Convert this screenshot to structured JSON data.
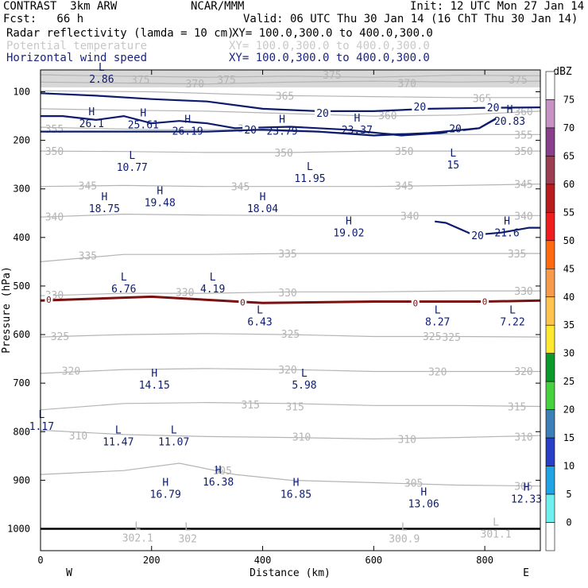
{
  "header": {
    "title": "CONTRAST  3km ARW",
    "center": "NCAR/MMM",
    "init": "Init: 12 UTC Mon 27 Jan 14",
    "fcst": "Fcst:   66 h",
    "valid": "Valid: 06 UTC Thu 30 Jan 14 (16 ChT Thu 30 Jan 14)",
    "fields": [
      {
        "name": "Radar reflectivity (lamda = 10 cm)",
        "xy": "XY= 100.0,300.0 to 400.0,300.0"
      },
      {
        "name": "Potential temperature",
        "xy": "XY= 100.0,300.0 to 400.0,300.0"
      },
      {
        "name": "Horizontal wind speed",
        "xy": "XY= 100.0,300.0 to 400.0,300.0"
      }
    ]
  },
  "chart_data": {
    "type": "cross-section",
    "xlabel": "Distance (km)",
    "ylabel": "Pressure (hPa)",
    "xlim": [
      0,
      900
    ],
    "ylim": [
      1045,
      55
    ],
    "x_ticks": [
      0,
      200,
      400,
      600,
      800
    ],
    "y_ticks": [
      100,
      200,
      300,
      400,
      500,
      600,
      700,
      800,
      900,
      1000
    ],
    "west_label": "W",
    "east_label": "E",
    "theta_contours": [
      {
        "label": "375",
        "points": [
          [
            0,
            65
          ],
          [
            150,
            68
          ],
          [
            300,
            70
          ],
          [
            450,
            68
          ],
          [
            600,
            70
          ],
          [
            750,
            66
          ],
          [
            900,
            67
          ]
        ],
        "labels_at": [
          [
            180,
            75
          ],
          [
            335,
            75
          ],
          [
            525,
            65
          ],
          [
            860,
            75
          ]
        ]
      },
      {
        "label": "370",
        "points": [
          [
            0,
            80
          ],
          [
            150,
            82
          ],
          [
            300,
            84
          ],
          [
            450,
            80
          ],
          [
            600,
            78
          ],
          [
            750,
            80
          ],
          [
            900,
            78
          ]
        ],
        "labels_at": [
          [
            278,
            83
          ],
          [
            660,
            82
          ]
        ]
      },
      {
        "label": "365",
        "points": [
          [
            0,
            98
          ],
          [
            200,
            100
          ],
          [
            350,
            105
          ],
          [
            450,
            108
          ],
          [
            600,
            110
          ],
          [
            750,
            112
          ],
          [
            900,
            112
          ]
        ],
        "labels_at": [
          [
            440,
            108
          ],
          [
            795,
            113
          ]
        ]
      },
      {
        "label": "360",
        "points": [
          [
            0,
            135
          ],
          [
            150,
            138
          ],
          [
            300,
            140
          ],
          [
            450,
            145
          ],
          [
            600,
            150
          ],
          [
            750,
            148
          ],
          [
            900,
            140
          ]
        ],
        "labels_at": [
          [
            625,
            148
          ],
          [
            870,
            140
          ]
        ]
      },
      {
        "label": "355",
        "points": [
          [
            0,
            173
          ],
          [
            200,
            178
          ],
          [
            350,
            178
          ],
          [
            450,
            182
          ],
          [
            600,
            185
          ],
          [
            750,
            188
          ],
          [
            900,
            188
          ]
        ],
        "labels_at": [
          [
            25,
            176
          ],
          [
            372,
            175
          ],
          [
            870,
            188
          ]
        ]
      },
      {
        "label": "350",
        "points": [
          [
            0,
            222
          ],
          [
            150,
            223
          ],
          [
            300,
            225
          ],
          [
            450,
            225
          ],
          [
            600,
            222
          ],
          [
            750,
            222
          ],
          [
            900,
            222
          ]
        ],
        "labels_at": [
          [
            25,
            222
          ],
          [
            438,
            225
          ],
          [
            655,
            222
          ],
          [
            870,
            222
          ]
        ]
      },
      {
        "label": "345",
        "points": [
          [
            0,
            295
          ],
          [
            150,
            293
          ],
          [
            300,
            295
          ],
          [
            450,
            295
          ],
          [
            600,
            295
          ],
          [
            750,
            293
          ],
          [
            900,
            290
          ]
        ],
        "labels_at": [
          [
            85,
            293
          ],
          [
            360,
            295
          ],
          [
            655,
            293
          ],
          [
            870,
            290
          ]
        ]
      },
      {
        "label": "340",
        "points": [
          [
            0,
            358
          ],
          [
            150,
            352
          ],
          [
            300,
            354
          ],
          [
            450,
            355
          ],
          [
            600,
            355
          ],
          [
            750,
            355
          ],
          [
            900,
            355
          ]
        ],
        "labels_at": [
          [
            25,
            357
          ],
          [
            665,
            355
          ],
          [
            870,
            355
          ]
        ]
      },
      {
        "label": "335",
        "points": [
          [
            0,
            450
          ],
          [
            150,
            435
          ],
          [
            300,
            435
          ],
          [
            450,
            433
          ],
          [
            600,
            433
          ],
          [
            750,
            433
          ],
          [
            900,
            433
          ]
        ],
        "labels_at": [
          [
            85,
            437
          ],
          [
            445,
            433
          ],
          [
            858,
            433
          ]
        ]
      },
      {
        "label": "330",
        "points": [
          [
            0,
            520
          ],
          [
            150,
            515
          ],
          [
            300,
            515
          ],
          [
            450,
            512
          ],
          [
            600,
            512
          ],
          [
            750,
            510
          ],
          [
            900,
            510
          ]
        ],
        "labels_at": [
          [
            25,
            518
          ],
          [
            260,
            512
          ],
          [
            445,
            513
          ],
          [
            870,
            510
          ]
        ]
      },
      {
        "label": "325",
        "points": [
          [
            0,
            605
          ],
          [
            150,
            600
          ],
          [
            300,
            598
          ],
          [
            450,
            600
          ],
          [
            600,
            604
          ],
          [
            750,
            604
          ],
          [
            900,
            605
          ]
        ],
        "labels_at": [
          [
            35,
            603
          ],
          [
            450,
            598
          ],
          [
            705,
            603
          ],
          [
            740,
            605
          ]
        ]
      },
      {
        "label": "320",
        "points": [
          [
            0,
            680
          ],
          [
            150,
            672
          ],
          [
            300,
            670
          ],
          [
            450,
            672
          ],
          [
            600,
            676
          ],
          [
            750,
            676
          ],
          [
            900,
            676
          ]
        ],
        "labels_at": [
          [
            55,
            674
          ],
          [
            445,
            672
          ],
          [
            715,
            676
          ],
          [
            870,
            675
          ]
        ]
      },
      {
        "label": "315",
        "points": [
          [
            0,
            755
          ],
          [
            150,
            742
          ],
          [
            300,
            740
          ],
          [
            450,
            742
          ],
          [
            600,
            746
          ],
          [
            750,
            746
          ],
          [
            900,
            748
          ]
        ],
        "labels_at": [
          [
            378,
            744
          ],
          [
            458,
            748
          ],
          [
            858,
            748
          ]
        ]
      },
      {
        "label": "310",
        "points": [
          [
            0,
            797
          ],
          [
            150,
            806
          ],
          [
            300,
            810
          ],
          [
            450,
            812
          ],
          [
            600,
            815
          ],
          [
            750,
            812
          ],
          [
            900,
            808
          ]
        ],
        "labels_at": [
          [
            68,
            808
          ],
          [
            470,
            810
          ],
          [
            660,
            815
          ],
          [
            870,
            810
          ]
        ]
      },
      {
        "label": "305",
        "points": [
          [
            0,
            888
          ],
          [
            150,
            880
          ],
          [
            250,
            865
          ],
          [
            350,
            888
          ],
          [
            450,
            900
          ],
          [
            600,
            905
          ],
          [
            750,
            910
          ],
          [
            900,
            912
          ]
        ],
        "labels_at": [
          [
            328,
            880
          ],
          [
            672,
            905
          ],
          [
            870,
            912
          ]
        ]
      }
    ],
    "wind_20": [
      {
        "label": "20",
        "points": [
          [
            0,
            103
          ],
          [
            100,
            108
          ],
          [
            200,
            115
          ],
          [
            300,
            120
          ],
          [
            400,
            135
          ],
          [
            500,
            140
          ],
          [
            600,
            140
          ],
          [
            700,
            135
          ],
          [
            800,
            133
          ],
          [
            900,
            132
          ]
        ],
        "labels_at": [
          [
            508,
            143
          ],
          [
            683,
            130
          ],
          [
            815,
            132
          ]
        ]
      },
      {
        "label": "20",
        "points": [
          [
            0,
            150
          ],
          [
            40,
            150
          ],
          [
            100,
            158
          ],
          [
            150,
            150
          ],
          [
            200,
            165
          ],
          [
            250,
            160
          ],
          [
            300,
            165
          ],
          [
            350,
            175
          ],
          [
            450,
            172
          ],
          [
            550,
            178
          ],
          [
            650,
            190
          ],
          [
            720,
            185
          ],
          [
            790,
            175
          ],
          [
            820,
            155
          ]
        ],
        "labels_at": [
          [
            378,
            178
          ],
          [
            747,
            175
          ]
        ]
      },
      {
        "label": "20",
        "points": [
          [
            0,
            182
          ],
          [
            200,
            182
          ],
          [
            300,
            182
          ],
          [
            400,
            178
          ],
          [
            500,
            182
          ],
          [
            600,
            190
          ],
          [
            700,
            185
          ],
          [
            790,
            175
          ],
          [
            820,
            156
          ]
        ],
        "labels_at": []
      },
      {
        "label": "20",
        "points": [
          [
            710,
            367
          ],
          [
            730,
            370
          ],
          [
            780,
            395
          ],
          [
            830,
            390
          ],
          [
            880,
            380
          ],
          [
            900,
            380
          ]
        ],
        "labels_at": [
          [
            787,
            395
          ]
        ]
      }
    ],
    "reflectivity_0": {
      "label": "0",
      "points": [
        [
          0,
          530
        ],
        [
          200,
          522
        ],
        [
          400,
          535
        ],
        [
          600,
          532
        ],
        [
          800,
          532
        ],
        [
          900,
          530
        ]
      ],
      "labels_at": [
        [
          15,
          528
        ],
        [
          364,
          534
        ],
        [
          675,
          535
        ],
        [
          800,
          532
        ]
      ]
    },
    "maxmin_labels": [
      {
        "kind": "L",
        "value": "2.86",
        "x": 110,
        "p": 63
      },
      {
        "kind": "H",
        "value": "26.1",
        "x": 92,
        "p": 155
      },
      {
        "kind": "H",
        "value": "25.61",
        "x": 185,
        "p": 157
      },
      {
        "kind": "H",
        "value": "26.19",
        "x": 265,
        "p": 170
      },
      {
        "kind": "H",
        "value": "23.79",
        "x": 435,
        "p": 170
      },
      {
        "kind": "H",
        "value": "23.37",
        "x": 570,
        "p": 168
      },
      {
        "kind": "H",
        "value": "20.83",
        "x": 845,
        "p": 150
      },
      {
        "kind": "L",
        "value": "10.77",
        "x": 165,
        "p": 245
      },
      {
        "kind": "L",
        "value": "11.95",
        "x": 485,
        "p": 268
      },
      {
        "kind": "L",
        "value": "15",
        "x": 743,
        "p": 240
      },
      {
        "kind": "H",
        "value": "19.48",
        "x": 215,
        "p": 318
      },
      {
        "kind": "H",
        "value": "18.75",
        "x": 115,
        "p": 330
      },
      {
        "kind": "H",
        "value": "18.04",
        "x": 400,
        "p": 330
      },
      {
        "kind": "H",
        "value": "19.02",
        "x": 555,
        "p": 380
      },
      {
        "kind": "H",
        "value": "21.6",
        "x": 840,
        "p": 380
      },
      {
        "kind": "L",
        "value": "6.76",
        "x": 150,
        "p": 495
      },
      {
        "kind": "L",
        "value": "4.19",
        "x": 310,
        "p": 495
      },
      {
        "kind": "L",
        "value": "6.43",
        "x": 395,
        "p": 563
      },
      {
        "kind": "L",
        "value": "8.27",
        "x": 715,
        "p": 563
      },
      {
        "kind": "L",
        "value": "7.22",
        "x": 850,
        "p": 563
      },
      {
        "kind": "H",
        "value": "14.15",
        "x": 205,
        "p": 693
      },
      {
        "kind": "L",
        "value": "5.98",
        "x": 475,
        "p": 693
      },
      {
        "kind": "L",
        "value": "1.17",
        "x": 2,
        "p": 778
      },
      {
        "kind": "L",
        "value": "11.47",
        "x": 140,
        "p": 810
      },
      {
        "kind": "L",
        "value": "11.07",
        "x": 240,
        "p": 810
      },
      {
        "kind": "H",
        "value": "16.38",
        "x": 320,
        "p": 893
      },
      {
        "kind": "H",
        "value": "16.79",
        "x": 225,
        "p": 918
      },
      {
        "kind": "H",
        "value": "16.85",
        "x": 460,
        "p": 918
      },
      {
        "kind": "H",
        "value": "13.06",
        "x": 690,
        "p": 938
      },
      {
        "kind": "H",
        "value": "12.33",
        "x": 875,
        "p": 928
      },
      {
        "kind": "L",
        "value": "302.1",
        "x": 175,
        "p": 1008
      },
      {
        "kind": "L",
        "value": "302",
        "x": 265,
        "p": 1010
      },
      {
        "kind": "L",
        "value": "300.9",
        "x": 655,
        "p": 1010
      },
      {
        "kind": "L",
        "value": "301.1",
        "x": 820,
        "p": 1000
      }
    ],
    "surface_line_p": 1000,
    "colorbar": {
      "unit": "dBZ",
      "levels": [
        "75",
        "70",
        "65",
        "60",
        "55",
        "50",
        "45",
        "40",
        "35",
        "30",
        "25",
        "20",
        "15",
        "10",
        "5",
        "0"
      ],
      "colors": [
        "#ffffff",
        "#c792c5",
        "#8a3f8c",
        "#9c3e52",
        "#b81c1c",
        "#ee1e1e",
        "#ff6a10",
        "#f79a4a",
        "#ffc44e",
        "#ffe830",
        "#0a9a2c",
        "#46d23e",
        "#3d7fb7",
        "#2a3fc8",
        "#20a4e6",
        "#6ff0ee",
        "#ffffff"
      ]
    }
  }
}
